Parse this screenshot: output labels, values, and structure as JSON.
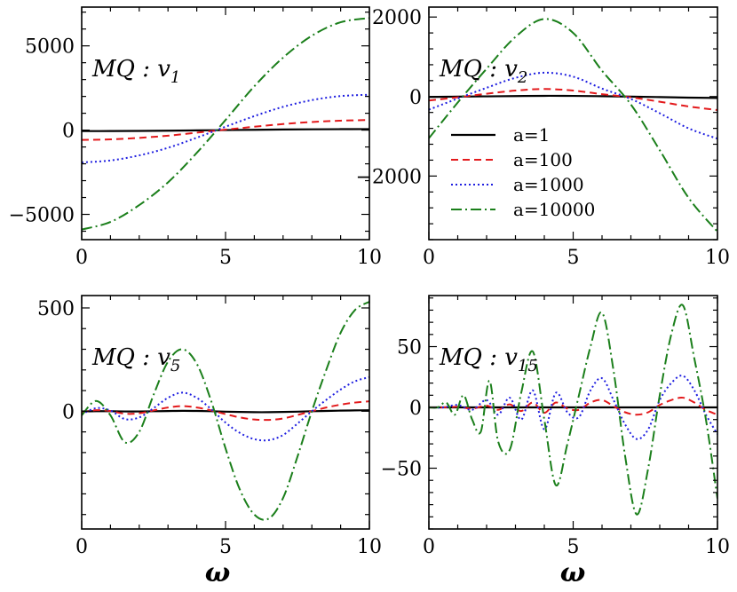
{
  "colors": {
    "a1": "#000000",
    "a100": "#e31a1c",
    "a1000": "#1f1fe0",
    "a10000": "#1b7f1b"
  },
  "xlabel": "ω",
  "legend": {
    "placement": "upper-right panel, center-left",
    "entries": [
      "a=1",
      "a=100",
      "a=1000",
      "a=10000"
    ]
  },
  "chart_data": [
    {
      "type": "line",
      "panel_label": {
        "main": "MQ : v",
        "sub": "1"
      },
      "xlim": [
        0,
        10
      ],
      "ylim": [
        -6500,
        7300
      ],
      "xticks": [
        0,
        5,
        10
      ],
      "yticks": [
        -5000,
        0,
        5000
      ],
      "ytick_labels": [
        "−5000",
        "0",
        "5000"
      ],
      "series": [
        {
          "name": "a=1",
          "x": [
            0,
            1,
            2,
            3,
            4,
            5,
            6,
            7,
            8,
            9,
            10
          ],
          "y": [
            -58,
            -55,
            -46,
            -33,
            -16,
            2,
            20,
            36,
            48,
            56,
            60
          ]
        },
        {
          "name": "a=100",
          "x": [
            0,
            1,
            2,
            3,
            4,
            5,
            6,
            7,
            8,
            9,
            10
          ],
          "y": [
            -580,
            -550,
            -460,
            -330,
            -150,
            30,
            200,
            360,
            480,
            560,
            600
          ]
        },
        {
          "name": "a=1000",
          "x": [
            0,
            1,
            2,
            3,
            4,
            5,
            6,
            7,
            8,
            9,
            10
          ],
          "y": [
            -1920,
            -1800,
            -1500,
            -1050,
            -450,
            200,
            830,
            1380,
            1780,
            2020,
            2100
          ]
        },
        {
          "name": "a=10000",
          "x": [
            0,
            1,
            2,
            3,
            4,
            5,
            6,
            7,
            8,
            9,
            10
          ],
          "y": [
            -5900,
            -5450,
            -4450,
            -3100,
            -1350,
            600,
            2600,
            4300,
            5600,
            6400,
            6650
          ]
        }
      ]
    },
    {
      "type": "line",
      "panel_label": {
        "main": "MQ : v",
        "sub": "2"
      },
      "xlim": [
        0,
        10
      ],
      "ylim": [
        -3600,
        2250
      ],
      "xticks": [
        0,
        5,
        10
      ],
      "yticks": [
        -2000,
        0,
        2000
      ],
      "ytick_labels": [
        "−2000",
        "0",
        "2000"
      ],
      "series": [
        {
          "name": "a=1",
          "x": [
            0,
            1,
            2,
            3,
            4,
            5,
            6,
            7,
            8,
            9,
            10
          ],
          "y": [
            -10,
            -2,
            5,
            12,
            18,
            16,
            8,
            -2,
            -14,
            -27,
            -36
          ]
        },
        {
          "name": "a=100",
          "x": [
            0,
            1,
            2,
            3,
            4,
            5,
            6,
            7,
            8,
            9,
            10
          ],
          "y": [
            -100,
            -20,
            70,
            150,
            190,
            150,
            60,
            -20,
            -130,
            -250,
            -340
          ]
        },
        {
          "name": "a=1000",
          "x": [
            0,
            1,
            2,
            3,
            4,
            5,
            6,
            7,
            8,
            9,
            10
          ],
          "y": [
            -330,
            -50,
            220,
            470,
            600,
            500,
            200,
            -60,
            -420,
            -800,
            -1060
          ]
        },
        {
          "name": "a=10000",
          "x": [
            0,
            1,
            2,
            3,
            4,
            5,
            6,
            7,
            8,
            9,
            10
          ],
          "y": [
            -1050,
            -150,
            700,
            1500,
            1950,
            1600,
            650,
            -200,
            -1350,
            -2550,
            -3400
          ]
        }
      ]
    },
    {
      "type": "line",
      "panel_label": {
        "main": "MQ : v",
        "sub": "5"
      },
      "xlim": [
        0,
        10
      ],
      "ylim": [
        -570,
        560
      ],
      "xticks": [
        0,
        5,
        10
      ],
      "yticks": [
        0,
        500
      ],
      "ytick_labels": [
        "0",
        "500"
      ],
      "series": [
        {
          "name": "a=1",
          "x": [
            0,
            0.5,
            1,
            1.5,
            2,
            2.5,
            3,
            3.5,
            4,
            4.5,
            5,
            5.5,
            6,
            6.5,
            7,
            7.5,
            8,
            8.5,
            9,
            9.5,
            10
          ],
          "y": [
            -1,
            0.5,
            0,
            -1,
            -1,
            0,
            1,
            2,
            1.5,
            0,
            -2,
            -3.5,
            -4.5,
            -4.5,
            -3.5,
            -2,
            0,
            1.5,
            3,
            4,
            5
          ]
        },
        {
          "name": "a=100",
          "x": [
            0,
            0.5,
            1,
            1.5,
            2,
            2.5,
            3,
            3.5,
            4,
            4.5,
            5,
            5.5,
            6,
            6.5,
            7,
            7.5,
            8,
            8.5,
            9,
            9.5,
            10
          ],
          "y": [
            -5,
            5,
            1,
            -12,
            -10,
            4,
            18,
            25,
            18,
            4,
            -14,
            -30,
            -40,
            -42,
            -35,
            -18,
            0,
            18,
            32,
            42,
            48
          ]
        },
        {
          "name": "a=1000",
          "x": [
            0,
            0.5,
            1,
            1.5,
            2,
            2.5,
            3,
            3.5,
            4,
            4.5,
            5,
            5.5,
            6,
            6.5,
            7,
            7.5,
            8,
            8.5,
            9,
            9.5,
            10
          ],
          "y": [
            -15,
            15,
            3,
            -38,
            -30,
            15,
            65,
            90,
            65,
            10,
            -55,
            -105,
            -135,
            -140,
            -115,
            -60,
            0,
            55,
            105,
            145,
            165
          ]
        },
        {
          "name": "a=10000",
          "x": [
            0,
            0.5,
            1,
            1.5,
            2,
            2.5,
            3,
            3.5,
            4,
            4.5,
            5,
            5.5,
            6,
            6.5,
            7,
            7.5,
            8,
            8.5,
            9,
            9.5,
            10
          ],
          "y": [
            -20,
            50,
            -20,
            -150,
            -100,
            80,
            240,
            300,
            230,
            50,
            -180,
            -380,
            -500,
            -520,
            -420,
            -220,
            0,
            200,
            380,
            490,
            530
          ]
        }
      ]
    },
    {
      "type": "line",
      "panel_label": {
        "main": "MQ : v",
        "sub": "15"
      },
      "xlim": [
        0,
        10
      ],
      "ylim": [
        -100,
        92
      ],
      "xticks": [
        0,
        5,
        10
      ],
      "yticks": [
        -50,
        0,
        50
      ],
      "ytick_labels": [
        "−50",
        "0",
        "50"
      ],
      "series": [
        {
          "name": "a=1",
          "x": [
            0,
            10
          ],
          "y": [
            0,
            0
          ]
        },
        {
          "name": "a=100",
          "x": [
            0,
            0.5,
            1,
            1.5,
            2,
            2.4,
            2.8,
            3.2,
            3.6,
            4,
            4.4,
            4.8,
            5.2,
            5.6,
            6,
            6.4,
            6.8,
            7.2,
            7.6,
            8,
            8.4,
            8.8,
            9.2,
            9.6,
            10
          ],
          "y": [
            0,
            0,
            0.5,
            -1,
            1.5,
            -2,
            2.5,
            -3,
            4,
            -4.5,
            4,
            -1,
            -2,
            4,
            6,
            1,
            -4,
            -6,
            -4,
            2,
            6,
            8,
            4,
            -2,
            -6
          ]
        },
        {
          "name": "a=1000",
          "x": [
            0,
            0.5,
            1,
            1.5,
            2,
            2.4,
            2.8,
            3.2,
            3.6,
            4,
            4.4,
            4.8,
            5.2,
            5.6,
            6,
            6.4,
            6.8,
            7.2,
            7.6,
            8,
            8.4,
            8.8,
            9.2,
            9.6,
            10
          ],
          "y": [
            0,
            0,
            2,
            -2,
            6,
            -6,
            8,
            -10,
            14,
            -18,
            12,
            -4,
            -8,
            14,
            24,
            6,
            -14,
            -26,
            -18,
            6,
            20,
            26,
            14,
            -6,
            -22
          ]
        },
        {
          "name": "a=10000",
          "x": [
            0,
            0.3,
            0.6,
            0.9,
            1.2,
            1.5,
            1.8,
            2.1,
            2.4,
            2.8,
            3.2,
            3.6,
            4,
            4.4,
            4.8,
            5.2,
            5.6,
            6,
            6.4,
            6.8,
            7.2,
            7.6,
            8,
            8.4,
            8.8,
            9.2,
            9.6,
            10
          ],
          "y": [
            0,
            0,
            4,
            -6,
            10,
            -10,
            -20,
            22,
            -28,
            -35,
            12,
            46,
            -10,
            -64,
            -30,
            10,
            50,
            78,
            30,
            -40,
            -88,
            -50,
            10,
            60,
            84,
            40,
            -10,
            -75
          ]
        }
      ]
    }
  ]
}
